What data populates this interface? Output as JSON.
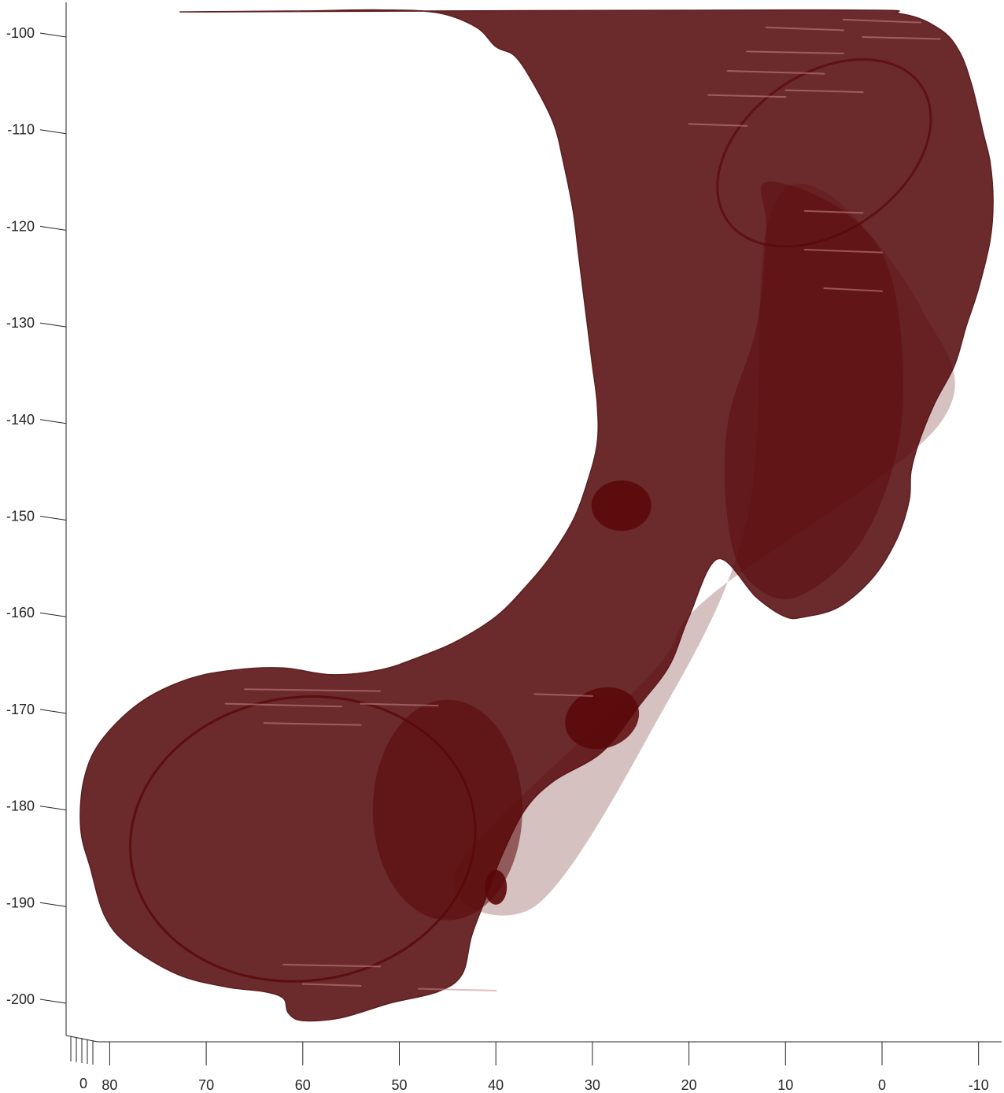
{
  "chart_data": {
    "type": "3d-surface",
    "title": "",
    "xlabel": "",
    "ylabel": "",
    "zlabel": "",
    "x_axis": {
      "ticks": [
        80,
        70,
        60,
        50,
        40,
        30,
        20,
        10,
        0,
        -10
      ],
      "tick_labels": [
        "80",
        "70",
        "60",
        "50",
        "40",
        "30",
        "20",
        "10",
        "0",
        "-10"
      ],
      "range": [
        84,
        -12
      ],
      "direction": "reversed"
    },
    "y_axis": {
      "ticks": [
        -100,
        -110,
        -120,
        -130,
        -140,
        -150,
        -160,
        -170,
        -180,
        -190,
        -200
      ],
      "tick_labels": [
        "-100",
        "-110",
        "-120",
        "-130",
        "-140",
        "-150",
        "-160",
        "-170",
        "-180",
        "-190",
        "-200"
      ],
      "range": [
        -96,
        -203
      ]
    },
    "depth_axis": {
      "tick_labels": [
        "0"
      ]
    },
    "surface": {
      "name": "",
      "color": "#6b2a2c",
      "dark_color": "#5a0708",
      "highlight_color": "#c98a8c",
      "shape_outline_xy": [
        [
          6,
          -97.2
        ],
        [
          -2,
          -97.6
        ],
        [
          -6,
          -99.2
        ],
        [
          -8,
          -101.5
        ],
        [
          -9.3,
          -105
        ],
        [
          -10.5,
          -110
        ],
        [
          -11.2,
          -113
        ],
        [
          -11.5,
          -117
        ],
        [
          -11.2,
          -121
        ],
        [
          -10,
          -126
        ],
        [
          -8.7,
          -130
        ],
        [
          -7.5,
          -134
        ],
        [
          -5.4,
          -138
        ],
        [
          -3.8,
          -142
        ],
        [
          -3,
          -145
        ],
        [
          -2.8,
          -148
        ],
        [
          -1.5,
          -152
        ],
        [
          1,
          -156
        ],
        [
          4.5,
          -159
        ],
        [
          8,
          -160
        ],
        [
          10,
          -160
        ],
        [
          13,
          -158
        ],
        [
          17,
          -154
        ],
        [
          20,
          -160
        ],
        [
          22,
          -165
        ],
        [
          25,
          -169
        ],
        [
          29,
          -174
        ],
        [
          34,
          -177
        ],
        [
          37,
          -180
        ],
        [
          39.5,
          -185
        ],
        [
          41,
          -189
        ],
        [
          42.5,
          -193
        ],
        [
          43.5,
          -197
        ],
        [
          46,
          -198.8
        ],
        [
          51,
          -200
        ],
        [
          56,
          -201.5
        ],
        [
          60,
          -201.8
        ],
        [
          61.5,
          -201
        ],
        [
          62,
          -199.5
        ],
        [
          64,
          -198.8
        ],
        [
          68,
          -198.3
        ],
        [
          73,
          -197
        ],
        [
          78,
          -194
        ],
        [
          80.5,
          -191
        ],
        [
          82,
          -186
        ],
        [
          83,
          -182
        ],
        [
          82.7,
          -177
        ],
        [
          81,
          -173
        ],
        [
          77,
          -169
        ],
        [
          72,
          -166.5
        ],
        [
          67,
          -165.5
        ],
        [
          62,
          -165.3
        ],
        [
          57,
          -166
        ],
        [
          52,
          -165.5
        ],
        [
          48,
          -164.2
        ],
        [
          44,
          -162.5
        ],
        [
          40,
          -160
        ],
        [
          37,
          -157
        ],
        [
          34.5,
          -154
        ],
        [
          32,
          -150
        ],
        [
          30.5,
          -146
        ],
        [
          29.5,
          -142
        ],
        [
          29.5,
          -138
        ],
        [
          30,
          -134
        ],
        [
          30.5,
          -130
        ],
        [
          31,
          -126
        ],
        [
          31.5,
          -122
        ],
        [
          32,
          -118
        ],
        [
          33,
          -113
        ],
        [
          34,
          -109
        ],
        [
          36,
          -105
        ],
        [
          38,
          -102
        ],
        [
          40,
          -101
        ],
        [
          42,
          -99
        ],
        [
          46,
          -97.5
        ],
        [
          52,
          -97.2
        ],
        [
          60,
          -97.3
        ],
        [
          70,
          -97.4
        ]
      ]
    }
  }
}
